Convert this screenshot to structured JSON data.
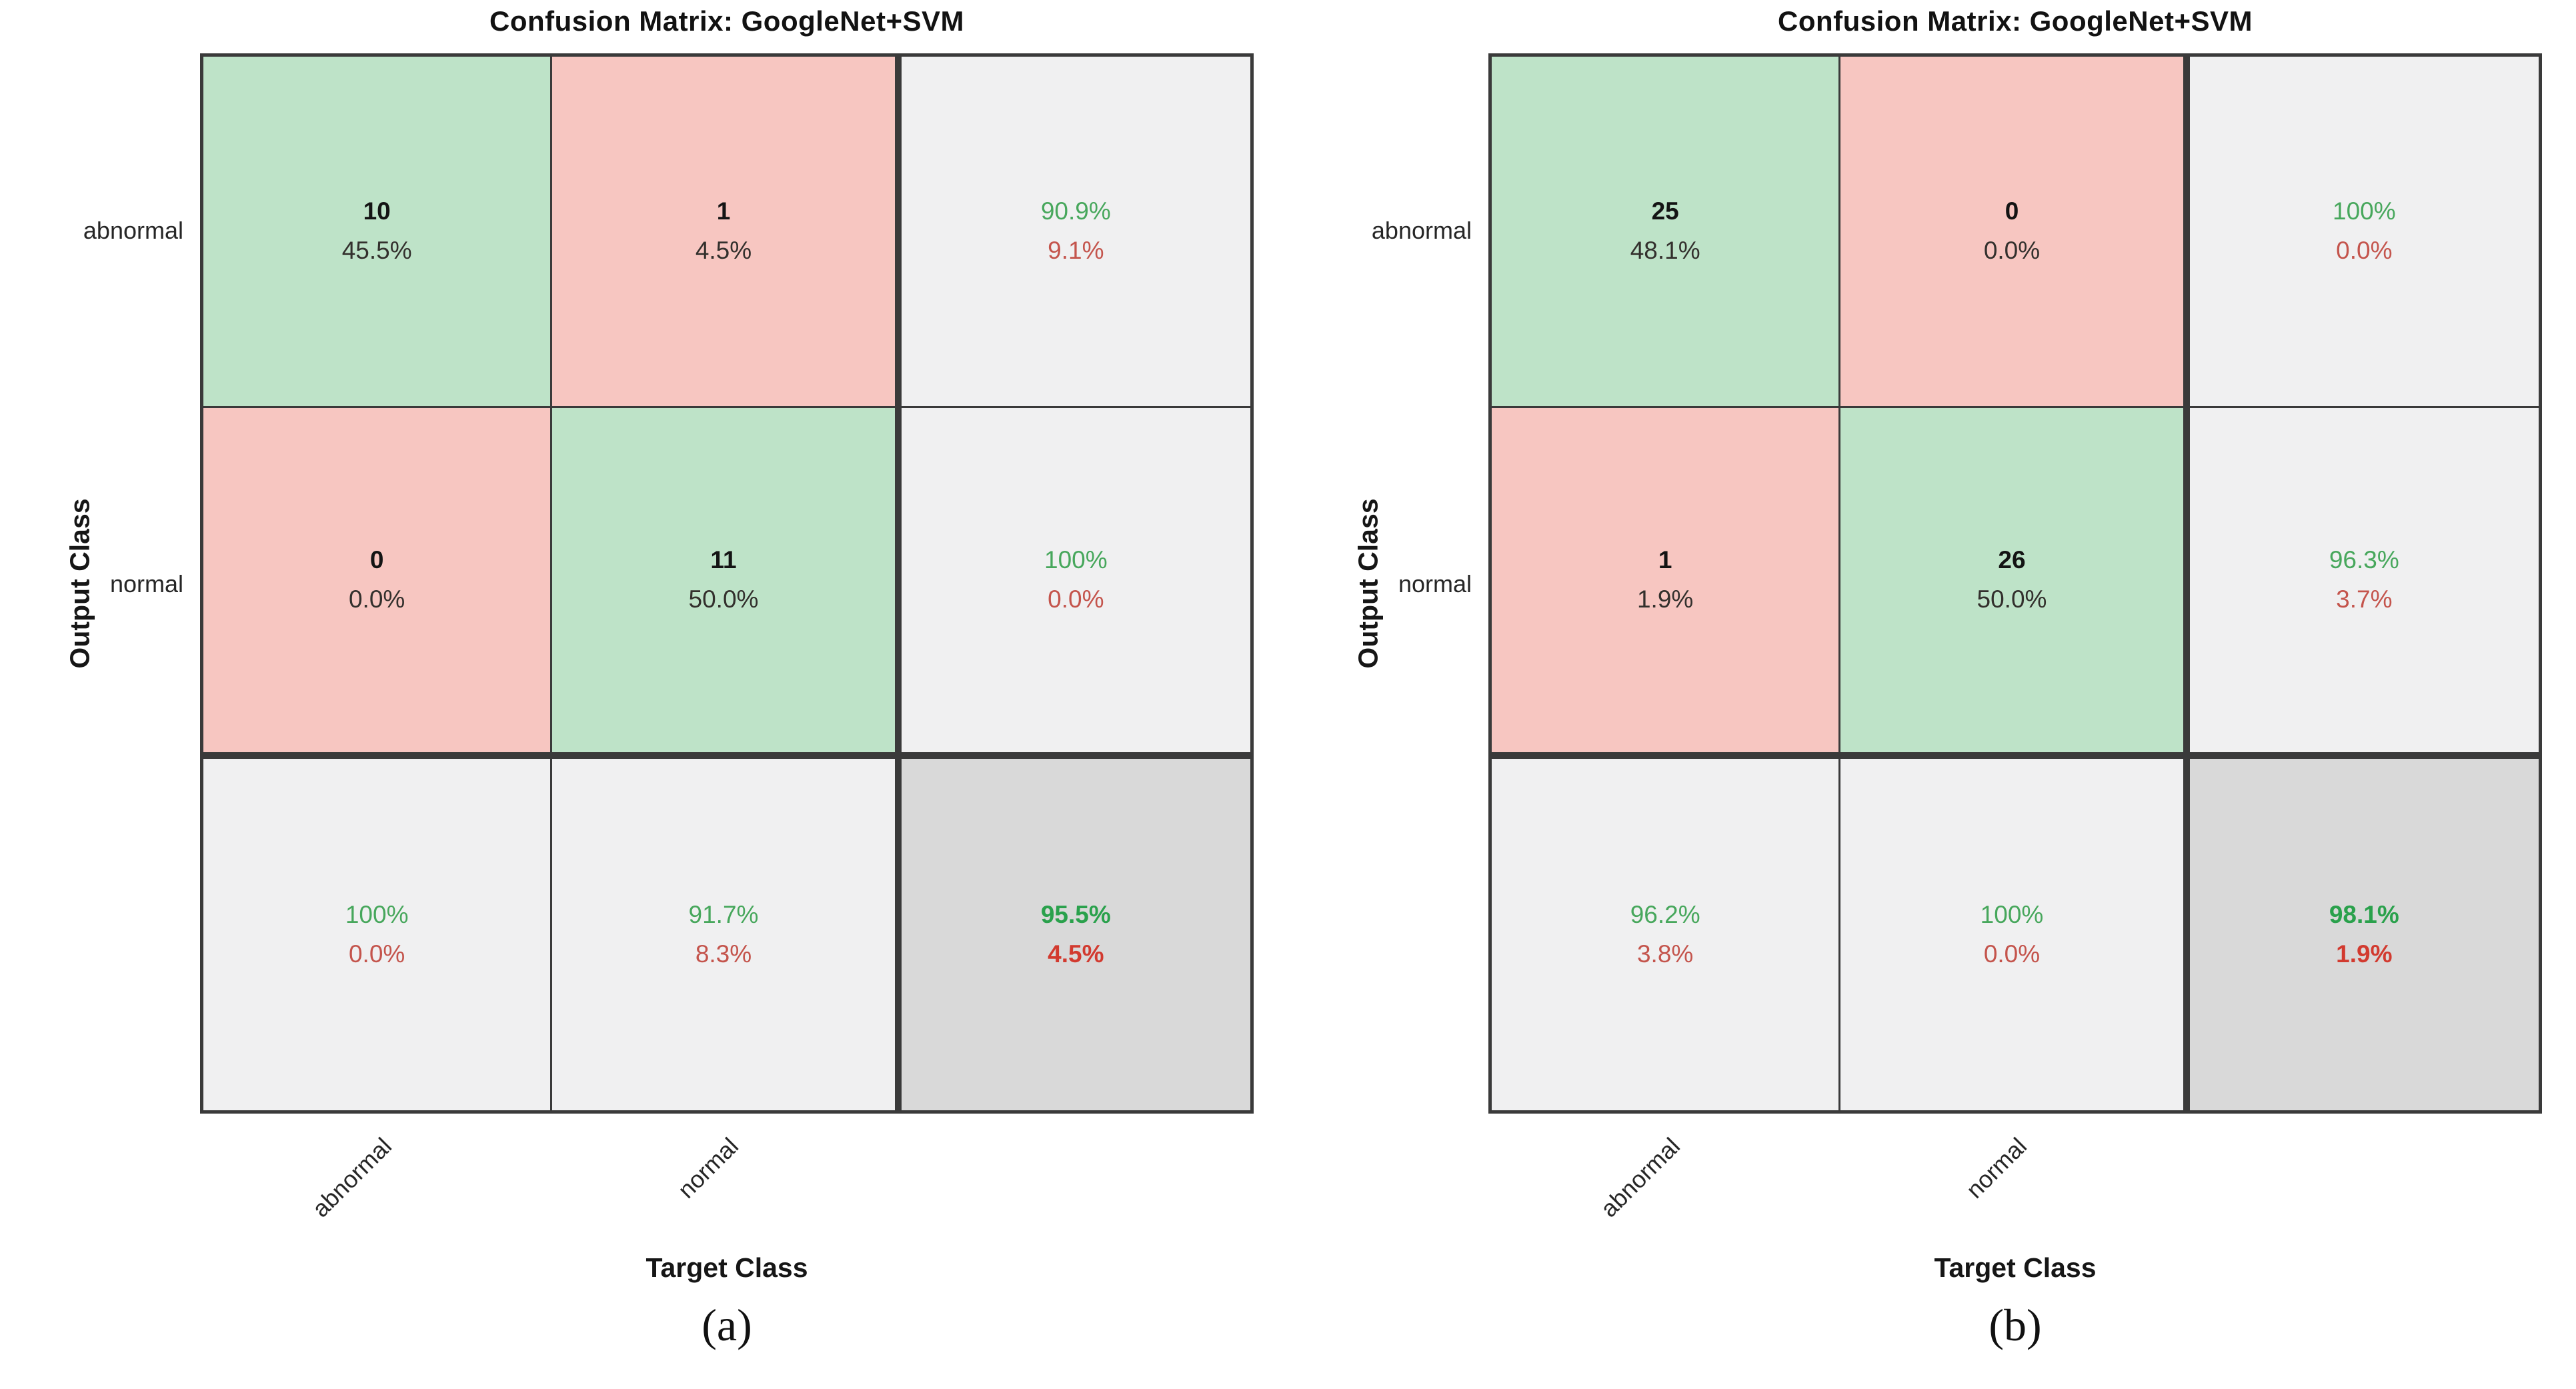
{
  "panels": [
    {
      "title": "Confusion Matrix: GoogleNet+SVM",
      "caption": "(a)",
      "x_axis_label": "Target Class",
      "y_axis_label": "Output Class",
      "x_tick_labels": [
        "abnormal",
        "normal"
      ],
      "y_tick_labels": [
        "abnormal",
        "normal"
      ],
      "grid": [
        [
          {
            "bg": "green",
            "lines": [
              {
                "text": "10",
                "cls": "num"
              },
              {
                "text": "45.5%",
                "cls": "pct"
              }
            ]
          },
          {
            "bg": "pink",
            "lines": [
              {
                "text": "1",
                "cls": "num"
              },
              {
                "text": "4.5%",
                "cls": "pct"
              }
            ]
          },
          {
            "bg": "gray",
            "lines": [
              {
                "text": "90.9%",
                "cls": "good"
              },
              {
                "text": "9.1%",
                "cls": "bad"
              }
            ]
          }
        ],
        [
          {
            "bg": "pink",
            "lines": [
              {
                "text": "0",
                "cls": "num"
              },
              {
                "text": "0.0%",
                "cls": "pct"
              }
            ]
          },
          {
            "bg": "green",
            "lines": [
              {
                "text": "11",
                "cls": "num"
              },
              {
                "text": "50.0%",
                "cls": "pct"
              }
            ]
          },
          {
            "bg": "gray",
            "lines": [
              {
                "text": "100%",
                "cls": "good"
              },
              {
                "text": "0.0%",
                "cls": "bad"
              }
            ]
          }
        ],
        [
          {
            "bg": "gray",
            "lines": [
              {
                "text": "100%",
                "cls": "good"
              },
              {
                "text": "0.0%",
                "cls": "bad"
              }
            ]
          },
          {
            "bg": "gray",
            "lines": [
              {
                "text": "91.7%",
                "cls": "good"
              },
              {
                "text": "8.3%",
                "cls": "bad"
              }
            ]
          },
          {
            "bg": "darkgray",
            "lines": [
              {
                "text": "95.5%",
                "cls": "good-bold"
              },
              {
                "text": "4.5%",
                "cls": "bad-bold"
              }
            ]
          }
        ]
      ]
    },
    {
      "title": "Confusion Matrix: GoogleNet+SVM",
      "caption": "(b)",
      "x_axis_label": "Target Class",
      "y_axis_label": "Output Class",
      "x_tick_labels": [
        "abnormal",
        "normal"
      ],
      "y_tick_labels": [
        "abnormal",
        "normal"
      ],
      "grid": [
        [
          {
            "bg": "green",
            "lines": [
              {
                "text": "25",
                "cls": "num"
              },
              {
                "text": "48.1%",
                "cls": "pct"
              }
            ]
          },
          {
            "bg": "pink",
            "lines": [
              {
                "text": "0",
                "cls": "num"
              },
              {
                "text": "0.0%",
                "cls": "pct"
              }
            ]
          },
          {
            "bg": "gray",
            "lines": [
              {
                "text": "100%",
                "cls": "good"
              },
              {
                "text": "0.0%",
                "cls": "bad"
              }
            ]
          }
        ],
        [
          {
            "bg": "pink",
            "lines": [
              {
                "text": "1",
                "cls": "num"
              },
              {
                "text": "1.9%",
                "cls": "pct"
              }
            ]
          },
          {
            "bg": "green",
            "lines": [
              {
                "text": "26",
                "cls": "num"
              },
              {
                "text": "50.0%",
                "cls": "pct"
              }
            ]
          },
          {
            "bg": "gray",
            "lines": [
              {
                "text": "96.3%",
                "cls": "good"
              },
              {
                "text": "3.7%",
                "cls": "bad"
              }
            ]
          }
        ],
        [
          {
            "bg": "gray",
            "lines": [
              {
                "text": "96.2%",
                "cls": "good"
              },
              {
                "text": "3.8%",
                "cls": "bad"
              }
            ]
          },
          {
            "bg": "gray",
            "lines": [
              {
                "text": "100%",
                "cls": "good"
              },
              {
                "text": "0.0%",
                "cls": "bad"
              }
            ]
          },
          {
            "bg": "darkgray",
            "lines": [
              {
                "text": "98.1%",
                "cls": "good-bold"
              },
              {
                "text": "1.9%",
                "cls": "bad-bold"
              }
            ]
          }
        ]
      ]
    }
  ],
  "colors": {
    "cell_green": "#bee3c8",
    "cell_pink": "#f7c6c1",
    "cell_gray": "#f0f0f1",
    "cell_gray_dark": "#d9d9d9",
    "grid_line": "#3a3a3a",
    "text_green": "#47a75c",
    "text_red": "#c4544c",
    "text_green_bold": "#2aa14c",
    "text_red_bold": "#d23a2f"
  },
  "chart_data": [
    {
      "type": "heatmap",
      "title": "Confusion Matrix: GoogleNet+SVM",
      "panel": "(a)",
      "xlabel": "Target Class",
      "ylabel": "Output Class",
      "classes": [
        "abnormal",
        "normal"
      ],
      "matrix_counts": [
        [
          10,
          1
        ],
        [
          0,
          11
        ]
      ],
      "matrix_percent": [
        [
          "45.5%",
          "4.5%"
        ],
        [
          "0.0%",
          "50.0%"
        ]
      ],
      "row_summary_green_red": [
        [
          "90.9%",
          "9.1%"
        ],
        [
          "100%",
          "0.0%"
        ]
      ],
      "col_summary_green_red": [
        [
          "100%",
          "0.0%"
        ],
        [
          "91.7%",
          "8.3%"
        ]
      ],
      "overall_green_red": [
        "95.5%",
        "4.5%"
      ],
      "legend_position": "none",
      "grid": "on"
    },
    {
      "type": "heatmap",
      "title": "Confusion Matrix: GoogleNet+SVM",
      "panel": "(b)",
      "xlabel": "Target Class",
      "ylabel": "Output Class",
      "classes": [
        "abnormal",
        "normal"
      ],
      "matrix_counts": [
        [
          25,
          0
        ],
        [
          1,
          26
        ]
      ],
      "matrix_percent": [
        [
          "48.1%",
          "0.0%"
        ],
        [
          "1.9%",
          "50.0%"
        ]
      ],
      "row_summary_green_red": [
        [
          "100%",
          "0.0%"
        ],
        [
          "96.3%",
          "3.7%"
        ]
      ],
      "col_summary_green_red": [
        [
          "96.2%",
          "3.8%"
        ],
        [
          "100%",
          "0.0%"
        ]
      ],
      "overall_green_red": [
        "98.1%",
        "1.9%"
      ],
      "legend_position": "none",
      "grid": "on"
    }
  ]
}
